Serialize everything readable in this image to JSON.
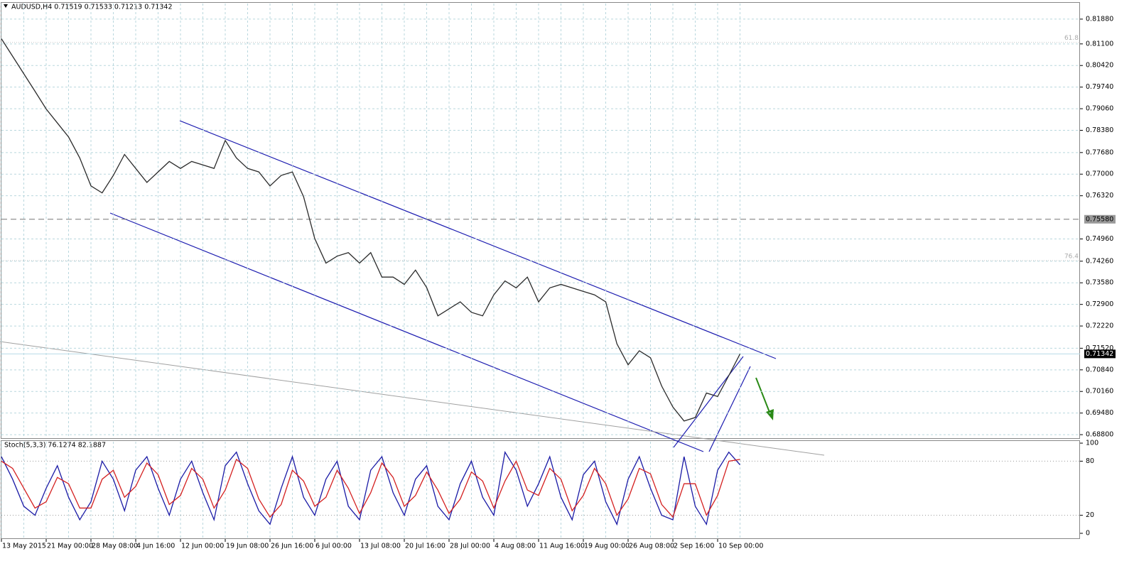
{
  "chart_data": [
    {
      "type": "line",
      "title": "AUDUSD,H4  0.71519 0.71533 0.71213 0.71342",
      "categories": [
        "13 May 2015",
        null,
        null,
        null,
        "21 May 00:00",
        null,
        null,
        null,
        "28 May 08:00",
        null,
        null,
        null,
        "4 Jun 16:00",
        null,
        null,
        null,
        "12 Jun 00:00",
        null,
        null,
        null,
        "19 Jun 08:00",
        null,
        null,
        null,
        "26 Jun 16:00",
        null,
        null,
        null,
        "6 Jul 00:00",
        null,
        null,
        null,
        "13 Jul 08:00",
        null,
        null,
        null,
        "20 Jul 16:00",
        null,
        null,
        null,
        "28 Jul 00:00",
        null,
        null,
        null,
        "4 Aug 08:00",
        null,
        null,
        null,
        "11 Aug 16:00",
        null,
        null,
        null,
        "19 Aug 00:00",
        null,
        null,
        null,
        "26 Aug 08:00",
        null,
        null,
        null,
        "2 Sep 16:00",
        null,
        null,
        null,
        "10 Sep 00:00",
        null,
        null
      ],
      "series": [
        {
          "color": "#2b2b2b",
          "values": [
            0.8126,
            0.8071,
            0.8016,
            0.7961,
            0.7905,
            0.7861,
            0.7817,
            0.7751,
            0.7663,
            0.7641,
            0.7696,
            0.7762,
            0.7718,
            0.7674,
            0.7707,
            0.774,
            0.7718,
            0.774,
            0.7729,
            0.7718,
            0.7806,
            0.7751,
            0.7718,
            0.7707,
            0.7663,
            0.7696,
            0.7707,
            0.7629,
            0.7497,
            0.742,
            0.7442,
            0.7453,
            0.742,
            0.7453,
            0.7376,
            0.7376,
            0.7353,
            0.7398,
            0.7343,
            0.7254,
            0.7276,
            0.7298,
            0.7265,
            0.7254,
            0.732,
            0.7364,
            0.7342,
            0.7376,
            0.7298,
            0.7342,
            0.7353,
            0.7342,
            0.7331,
            0.732,
            0.7298,
            0.7166,
            0.71,
            0.7144,
            0.7122,
            0.7033,
            0.6967,
            0.6923,
            0.6934,
            0.7011,
            0.7,
            0.7066,
            0.7134
          ]
        }
      ],
      "ylim": [
        0.6869,
        0.8237
      ],
      "yticks": [
        {
          "value": 0.8188,
          "label": "0.81880"
        },
        {
          "value": 0.811,
          "label": "0.81100"
        },
        {
          "value": 0.8042,
          "label": "0.80420"
        },
        {
          "value": 0.7974,
          "label": "0.79740"
        },
        {
          "value": 0.7906,
          "label": "0.79060"
        },
        {
          "value": 0.7838,
          "label": "0.78380"
        },
        {
          "value": 0.7768,
          "label": "0.77680"
        },
        {
          "value": 0.77,
          "label": "0.77000"
        },
        {
          "value": 0.7632,
          "label": "0.76320"
        },
        {
          "value": 0.7496,
          "label": "0.74960"
        },
        {
          "value": 0.7426,
          "label": "0.74260"
        },
        {
          "value": 0.7358,
          "label": "0.73580"
        },
        {
          "value": 0.729,
          "label": "0.72900"
        },
        {
          "value": 0.7222,
          "label": "0.72220"
        },
        {
          "value": 0.7152,
          "label": "0.71520"
        },
        {
          "value": 0.7084,
          "label": "0.70840"
        },
        {
          "value": 0.7016,
          "label": "0.70160"
        },
        {
          "value": 0.6948,
          "label": "0.69480"
        },
        {
          "value": 0.688,
          "label": "0.68800"
        }
      ],
      "levels": [
        {
          "value": 0.7558,
          "label": "0.75580",
          "style": "dashed"
        },
        {
          "value": 0.71342,
          "label": "0.71342",
          "style": "price"
        }
      ],
      "annotations": [
        {
          "value": 0.8115,
          "label": "61.8"
        },
        {
          "value": 0.7428,
          "label": "76.4"
        }
      ],
      "grid": true
    },
    {
      "type": "line",
      "title": "Stoch(5,3,3) 76.1274 82.1887",
      "series": [
        {
          "color": "#1a1aa6",
          "values": [
            85,
            60,
            30,
            20,
            50,
            75,
            40,
            15,
            35,
            80,
            60,
            25,
            70,
            85,
            50,
            20,
            60,
            80,
            45,
            15,
            75,
            90,
            55,
            25,
            10,
            50,
            85,
            40,
            20,
            60,
            80,
            30,
            15,
            70,
            85,
            45,
            20,
            60,
            75,
            30,
            15,
            55,
            80,
            40,
            20,
            90,
            70,
            30,
            55,
            85,
            40,
            15,
            65,
            80,
            35,
            10,
            60,
            85,
            50,
            20,
            15,
            85,
            30,
            10,
            70,
            90,
            76
          ]
        },
        {
          "color": "#d42020",
          "values": [
            80,
            72,
            50,
            28,
            35,
            62,
            55,
            28,
            28,
            60,
            70,
            40,
            52,
            78,
            65,
            32,
            42,
            72,
            60,
            28,
            48,
            82,
            72,
            38,
            18,
            32,
            70,
            58,
            30,
            40,
            70,
            50,
            22,
            45,
            78,
            62,
            30,
            42,
            68,
            48,
            22,
            38,
            68,
            58,
            28,
            58,
            80,
            48,
            42,
            72,
            60,
            25,
            42,
            72,
            55,
            20,
            38,
            72,
            66,
            32,
            18,
            55,
            55,
            20,
            42,
            80,
            82
          ]
        }
      ],
      "ylim": [
        -5.5,
        101.6
      ],
      "yticks": [
        100,
        80,
        20,
        0
      ],
      "levels": [
        80,
        20
      ]
    }
  ]
}
